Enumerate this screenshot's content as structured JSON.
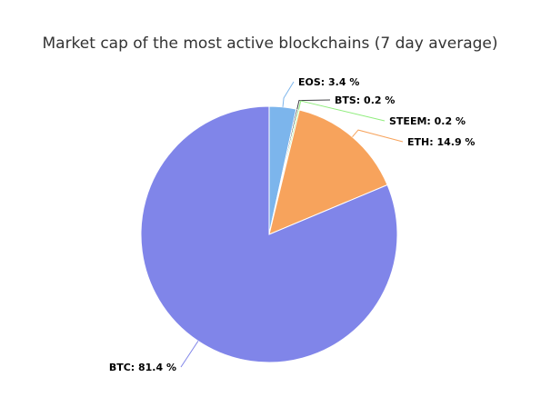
{
  "chart_data": {
    "type": "pie",
    "title": "Market cap of the most active blockchains (7 day average)",
    "unit": "%",
    "slices": [
      {
        "name": "EOS",
        "value": 3.4,
        "label": "EOS: 3.4 %",
        "color": "#7cb5ec",
        "line_color": "#7cb5ec"
      },
      {
        "name": "BTS",
        "value": 0.2,
        "label": "BTS: 0.2 %",
        "color": "#434348",
        "line_color": "#434348"
      },
      {
        "name": "STEEM",
        "value": 0.2,
        "label": "STEEM: 0.2 %",
        "color": "#90ed7d",
        "line_color": "#90ed7d"
      },
      {
        "name": "ETH",
        "value": 14.9,
        "label": "ETH: 14.9 %",
        "color": "#f7a35c",
        "line_color": "#f7a35c"
      },
      {
        "name": "BTC",
        "value": 81.4,
        "label": "BTC: 81.4 %",
        "color": "#8085e9",
        "line_color": "#8085e9"
      }
    ]
  }
}
